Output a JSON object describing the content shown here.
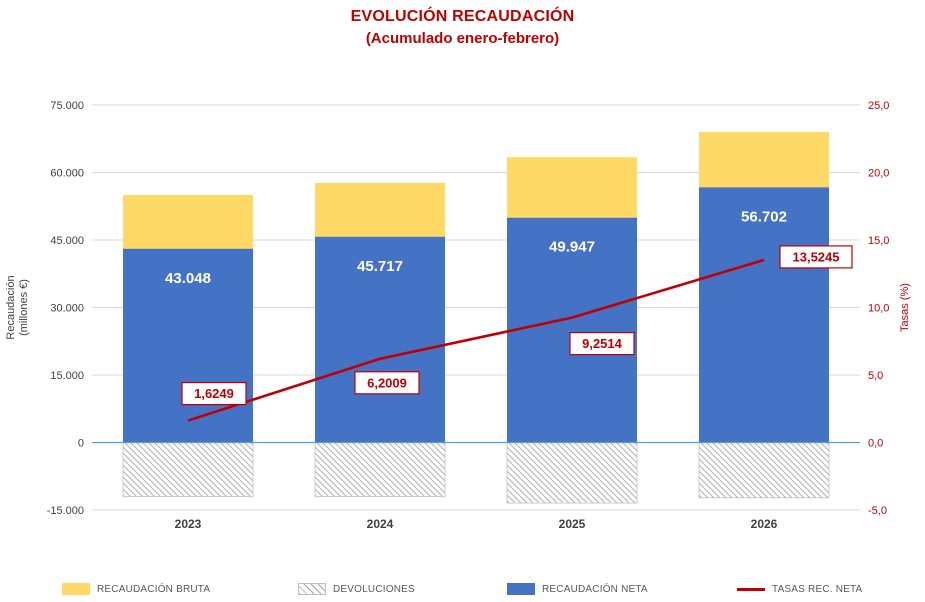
{
  "title": {
    "line1": "EVOLUCIÓN RECAUDACIÓN",
    "line2": "(Acumulado enero-febrero)",
    "color": "#C00000"
  },
  "chart_data": {
    "type": "combo",
    "categories": [
      "2023",
      "2024",
      "2025",
      "2026"
    ],
    "series": [
      {
        "name": "RECAUDACIÓN BRUTA",
        "type": "bar",
        "color": "#FFD966",
        "values": [
          55000,
          57700,
          63400,
          69000
        ]
      },
      {
        "name": "DEVOLUCIONES",
        "type": "bar",
        "pattern": "diagonal-hatch",
        "pattern_color": "#A6A6A6",
        "values": [
          -12000,
          -12000,
          -13450,
          -12300
        ]
      },
      {
        "name": "RECAUDACIÓN NETA",
        "type": "bar",
        "color": "#4472C4",
        "values": [
          43048,
          45717,
          49947,
          56702
        ],
        "data_labels": [
          "43.048",
          "45.717",
          "49.947",
          "56.702"
        ],
        "label_color": "#FFFFFF"
      },
      {
        "name": "TASAS REC. NETA",
        "type": "line",
        "axis": "right",
        "color": "#C00000",
        "values": [
          1.6249,
          6.2009,
          9.2514,
          13.5245
        ],
        "data_labels": [
          "1,6249",
          "6,2009",
          "9,2514",
          "13,5245"
        ]
      }
    ],
    "left_axis": {
      "title": "Recaudación",
      "subtitle": "(millones €)",
      "min": -15000,
      "max": 75000,
      "step": 15000,
      "tick_values": [
        75000,
        60000,
        45000,
        30000,
        15000,
        0,
        -15000
      ],
      "tick_labels": [
        "75.000",
        "60.000",
        "45.000",
        "30.000",
        "15.000",
        "0",
        "-15.000"
      ],
      "color": "#404040"
    },
    "right_axis": {
      "title": "Tasas (%)",
      "min": -5,
      "max": 25,
      "step": 5,
      "tick_values": [
        25,
        20,
        15,
        10,
        5,
        0,
        -5
      ],
      "tick_labels": [
        "25,0",
        "20,0",
        "15,0",
        "10,0",
        "5,0",
        "0,0",
        "-5,0"
      ],
      "color": "#C00000"
    },
    "grid": {
      "color": "#D9D9D9",
      "zero_line_color": "#5B9BD5",
      "gridlines": "horizontal"
    },
    "legend_position": "bottom"
  },
  "legend": {
    "items": [
      {
        "label": "RECAUDACIÓN BRUTA",
        "swatch": "yellow-rect",
        "color": "#FFD966"
      },
      {
        "label": "DEVOLUCIONES",
        "swatch": "hatch-rect",
        "color": "#A6A6A6"
      },
      {
        "label": "RECAUDACIÓN NETA",
        "swatch": "blue-rect",
        "color": "#4472C4"
      },
      {
        "label": "TASAS REC. NETA",
        "swatch": "red-line",
        "color": "#C00000"
      }
    ]
  }
}
